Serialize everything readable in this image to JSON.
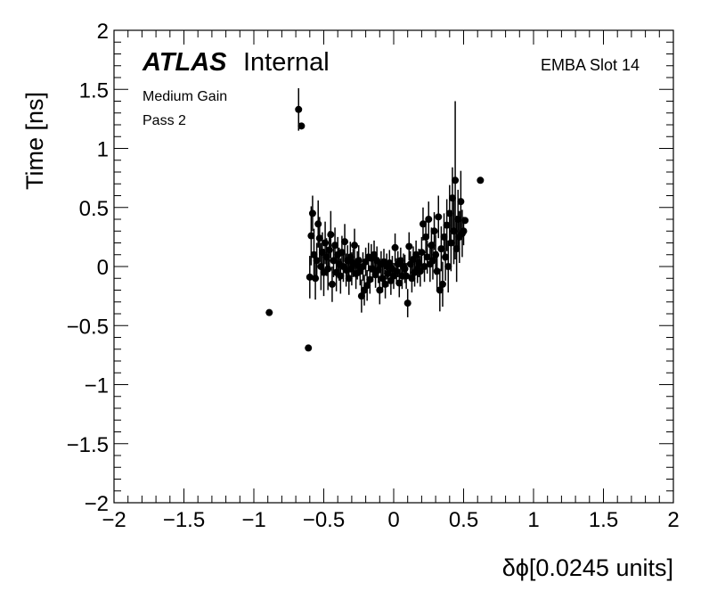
{
  "chart_data": {
    "type": "scatter",
    "title": "",
    "xlabel": "δϕ[0.0245 units]",
    "ylabel": "Time [ns]",
    "xlim": [
      -2,
      2
    ],
    "ylim": [
      -2,
      2
    ],
    "xticks": [
      -2,
      -1.5,
      -1,
      -0.5,
      0,
      0.5,
      1,
      1.5,
      2
    ],
    "yticks": [
      -2,
      -1.5,
      -1,
      -0.5,
      0,
      0.5,
      1,
      1.5,
      2
    ],
    "xtick_labels": [
      "−2",
      "−1.5",
      "−1",
      "−0.5",
      "0",
      "0.5",
      "1",
      "1.5",
      "2"
    ],
    "ytick_labels": [
      "−2",
      "−1.5",
      "−1",
      "−0.5",
      "0",
      "0.5",
      "1",
      "1.5",
      "2"
    ],
    "grid": false,
    "error_bars": true,
    "marker_color": "#000000",
    "annotations": {
      "atlas": "ATLAS",
      "internal": "Internal",
      "gain": "Medium Gain",
      "pass": "Pass 2",
      "slot": "EMBA Slot 14"
    },
    "points": [
      {
        "x": -0.89,
        "y": -0.39,
        "err": 0.0
      },
      {
        "x": -0.68,
        "y": 1.33,
        "err": 0.18
      },
      {
        "x": -0.66,
        "y": 1.19,
        "err": 0.0
      },
      {
        "x": -0.61,
        "y": -0.69,
        "err": 0.0
      },
      {
        "x": -0.6,
        "y": -0.09,
        "err": 0.18
      },
      {
        "x": -0.59,
        "y": 0.26,
        "err": 0.25
      },
      {
        "x": -0.58,
        "y": 0.45,
        "err": 0.15
      },
      {
        "x": -0.57,
        "y": 0.1,
        "err": 0.22
      },
      {
        "x": -0.56,
        "y": -0.1,
        "err": 0.18
      },
      {
        "x": -0.55,
        "y": 0.05,
        "err": 0.15
      },
      {
        "x": -0.54,
        "y": 0.36,
        "err": 0.2
      },
      {
        "x": -0.53,
        "y": 0.24,
        "err": 0.18
      },
      {
        "x": -0.52,
        "y": 0.0,
        "err": 0.2
      },
      {
        "x": -0.51,
        "y": 0.12,
        "err": 0.17
      },
      {
        "x": -0.5,
        "y": -0.05,
        "err": 0.2
      },
      {
        "x": -0.49,
        "y": 0.2,
        "err": 0.18
      },
      {
        "x": -0.48,
        "y": 0.08,
        "err": 0.16
      },
      {
        "x": -0.47,
        "y": -0.02,
        "err": 0.18
      },
      {
        "x": -0.46,
        "y": 0.14,
        "err": 0.16
      },
      {
        "x": -0.45,
        "y": 0.27,
        "err": 0.2
      },
      {
        "x": -0.44,
        "y": -0.15,
        "err": 0.15
      },
      {
        "x": -0.43,
        "y": 0.05,
        "err": 0.14
      },
      {
        "x": -0.42,
        "y": 0.18,
        "err": 0.15
      },
      {
        "x": -0.41,
        "y": -0.05,
        "err": 0.16
      },
      {
        "x": -0.4,
        "y": 0.1,
        "err": 0.15
      },
      {
        "x": -0.39,
        "y": 0.02,
        "err": 0.14
      },
      {
        "x": -0.38,
        "y": -0.08,
        "err": 0.15
      },
      {
        "x": -0.37,
        "y": 0.12,
        "err": 0.14
      },
      {
        "x": -0.36,
        "y": 0.0,
        "err": 0.13
      },
      {
        "x": -0.35,
        "y": 0.21,
        "err": 0.15
      },
      {
        "x": -0.34,
        "y": -0.03,
        "err": 0.14
      },
      {
        "x": -0.33,
        "y": 0.05,
        "err": 0.13
      },
      {
        "x": -0.32,
        "y": -0.1,
        "err": 0.14
      },
      {
        "x": -0.31,
        "y": 0.08,
        "err": 0.13
      },
      {
        "x": -0.3,
        "y": -0.02,
        "err": 0.14
      },
      {
        "x": -0.29,
        "y": 0.03,
        "err": 0.12
      },
      {
        "x": -0.28,
        "y": 0.18,
        "err": 0.14
      },
      {
        "x": -0.27,
        "y": -0.06,
        "err": 0.13
      },
      {
        "x": -0.26,
        "y": 0.01,
        "err": 0.12
      },
      {
        "x": -0.25,
        "y": 0.05,
        "err": 0.13
      },
      {
        "x": -0.24,
        "y": -0.04,
        "err": 0.12
      },
      {
        "x": -0.23,
        "y": -0.25,
        "err": 0.14
      },
      {
        "x": -0.22,
        "y": 0.0,
        "err": 0.12
      },
      {
        "x": -0.21,
        "y": -0.2,
        "err": 0.13
      },
      {
        "x": -0.2,
        "y": 0.04,
        "err": 0.12
      },
      {
        "x": -0.19,
        "y": -0.16,
        "err": 0.13
      },
      {
        "x": -0.18,
        "y": 0.08,
        "err": 0.12
      },
      {
        "x": -0.17,
        "y": -0.11,
        "err": 0.12
      },
      {
        "x": -0.16,
        "y": 0.07,
        "err": 0.12
      },
      {
        "x": -0.15,
        "y": -0.02,
        "err": 0.11
      },
      {
        "x": -0.14,
        "y": 0.1,
        "err": 0.12
      },
      {
        "x": -0.13,
        "y": -0.07,
        "err": 0.11
      },
      {
        "x": -0.12,
        "y": 0.05,
        "err": 0.12
      },
      {
        "x": -0.11,
        "y": -0.03,
        "err": 0.11
      },
      {
        "x": -0.1,
        "y": -0.2,
        "err": 0.12
      },
      {
        "x": -0.09,
        "y": 0.02,
        "err": 0.11
      },
      {
        "x": -0.08,
        "y": -0.1,
        "err": 0.12
      },
      {
        "x": -0.07,
        "y": 0.04,
        "err": 0.11
      },
      {
        "x": -0.06,
        "y": -0.15,
        "err": 0.12
      },
      {
        "x": -0.05,
        "y": 0.0,
        "err": 0.11
      },
      {
        "x": -0.04,
        "y": -0.06,
        "err": 0.11
      },
      {
        "x": -0.03,
        "y": 0.03,
        "err": 0.11
      },
      {
        "x": -0.02,
        "y": -0.12,
        "err": 0.12
      },
      {
        "x": -0.01,
        "y": -0.02,
        "err": 0.11
      },
      {
        "x": 0.0,
        "y": -0.08,
        "err": 0.11
      },
      {
        "x": 0.01,
        "y": 0.16,
        "err": 0.12
      },
      {
        "x": 0.02,
        "y": -0.04,
        "err": 0.11
      },
      {
        "x": 0.03,
        "y": 0.02,
        "err": 0.11
      },
      {
        "x": 0.04,
        "y": -0.14,
        "err": 0.12
      },
      {
        "x": 0.05,
        "y": 0.05,
        "err": 0.11
      },
      {
        "x": 0.06,
        "y": -0.08,
        "err": 0.11
      },
      {
        "x": 0.07,
        "y": 0.0,
        "err": 0.11
      },
      {
        "x": 0.08,
        "y": -0.02,
        "err": 0.12
      },
      {
        "x": 0.09,
        "y": -0.08,
        "err": 0.11
      },
      {
        "x": 0.1,
        "y": -0.31,
        "err": 0.12
      },
      {
        "x": 0.11,
        "y": 0.17,
        "err": 0.12
      },
      {
        "x": 0.12,
        "y": 0.02,
        "err": 0.11
      },
      {
        "x": 0.13,
        "y": -0.1,
        "err": 0.12
      },
      {
        "x": 0.14,
        "y": 0.06,
        "err": 0.11
      },
      {
        "x": 0.15,
        "y": -0.05,
        "err": 0.12
      },
      {
        "x": 0.16,
        "y": 0.1,
        "err": 0.12
      },
      {
        "x": 0.17,
        "y": -0.02,
        "err": 0.12
      },
      {
        "x": 0.18,
        "y": 0.03,
        "err": 0.12
      },
      {
        "x": 0.19,
        "y": -0.04,
        "err": 0.13
      },
      {
        "x": 0.2,
        "y": 0.12,
        "err": 0.13
      },
      {
        "x": 0.21,
        "y": 0.36,
        "err": 0.14
      },
      {
        "x": 0.22,
        "y": 0.0,
        "err": 0.13
      },
      {
        "x": 0.23,
        "y": 0.25,
        "err": 0.14
      },
      {
        "x": 0.24,
        "y": 0.08,
        "err": 0.14
      },
      {
        "x": 0.25,
        "y": 0.4,
        "err": 0.15
      },
      {
        "x": 0.26,
        "y": 0.02,
        "err": 0.15
      },
      {
        "x": 0.27,
        "y": 0.18,
        "err": 0.15
      },
      {
        "x": 0.28,
        "y": 0.05,
        "err": 0.16
      },
      {
        "x": 0.29,
        "y": 0.3,
        "err": 0.16
      },
      {
        "x": 0.3,
        "y": 0.1,
        "err": 0.17
      },
      {
        "x": 0.31,
        "y": -0.04,
        "err": 0.17
      },
      {
        "x": 0.32,
        "y": 0.42,
        "err": 0.18
      },
      {
        "x": 0.33,
        "y": -0.2,
        "err": 0.18
      },
      {
        "x": 0.34,
        "y": 0.15,
        "err": 0.19
      },
      {
        "x": 0.35,
        "y": -0.15,
        "err": 0.19
      },
      {
        "x": 0.36,
        "y": 0.25,
        "err": 0.2
      },
      {
        "x": 0.37,
        "y": 0.08,
        "err": 0.2
      },
      {
        "x": 0.38,
        "y": 0.35,
        "err": 0.22
      },
      {
        "x": 0.39,
        "y": 0.0,
        "err": 0.22
      },
      {
        "x": 0.4,
        "y": 0.45,
        "err": 0.24
      },
      {
        "x": 0.41,
        "y": 0.2,
        "err": 0.24
      },
      {
        "x": 0.42,
        "y": 0.58,
        "err": 0.26
      },
      {
        "x": 0.43,
        "y": 0.3,
        "err": 0.28
      },
      {
        "x": 0.44,
        "y": 0.73,
        "err": 0.67
      },
      {
        "x": 0.45,
        "y": 0.15,
        "err": 0.28
      },
      {
        "x": 0.46,
        "y": 0.4,
        "err": 0.25
      },
      {
        "x": 0.47,
        "y": 0.25,
        "err": 0.22
      },
      {
        "x": 0.48,
        "y": 0.55,
        "err": 0.26
      },
      {
        "x": 0.49,
        "y": 0.28,
        "err": 0.2
      },
      {
        "x": 0.5,
        "y": 0.3,
        "err": 0.12
      },
      {
        "x": 0.51,
        "y": 0.39,
        "err": 0.0
      },
      {
        "x": 0.62,
        "y": 0.73,
        "err": 0.0
      }
    ]
  }
}
